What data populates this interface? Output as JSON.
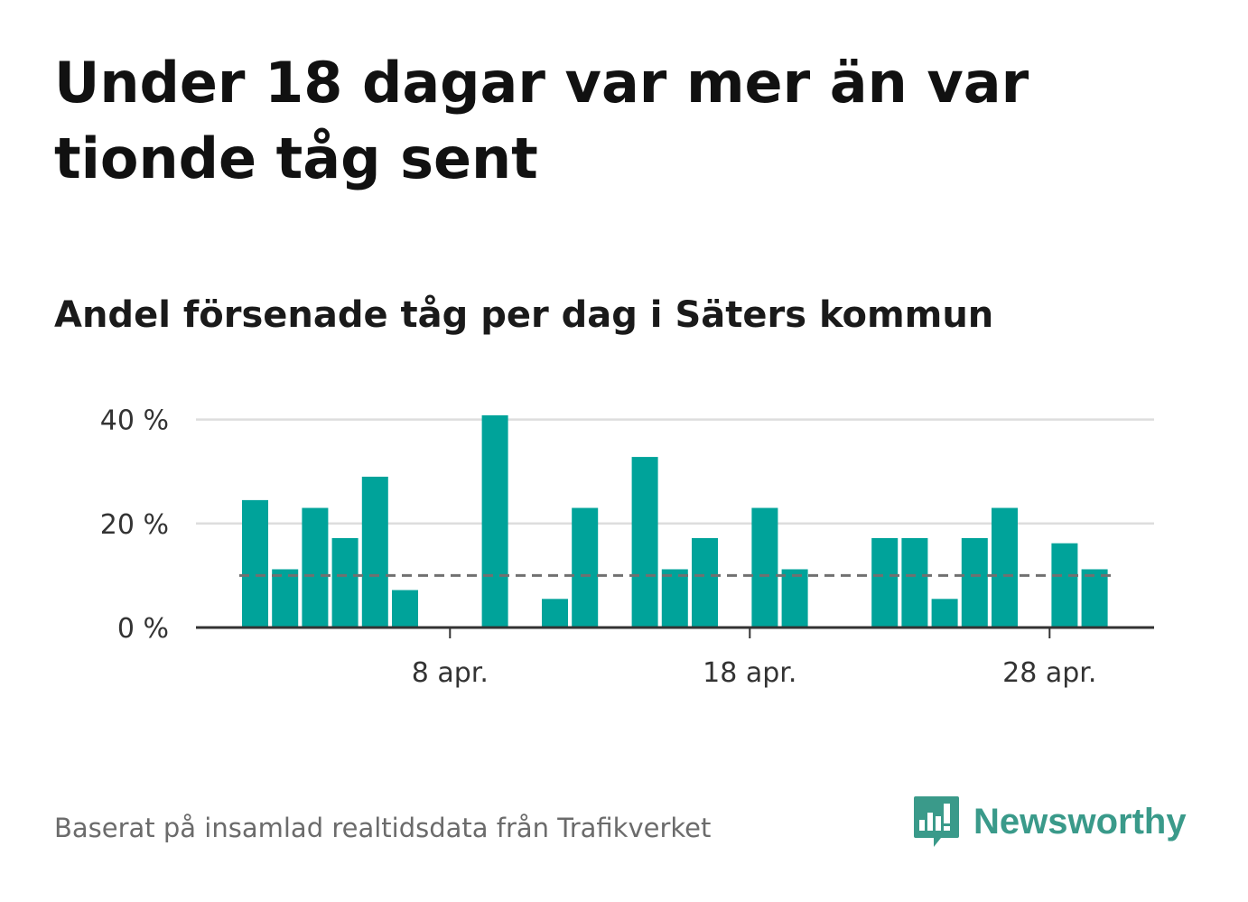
{
  "headline": "Under 18 dagar var mer än var tionde tåg sent",
  "subtitle": "Andel försenade tåg per dag i Säters kommun",
  "source": "Baserat på insamlad realtidsdata från Trafikverket",
  "brand": {
    "name": "Newsworthy",
    "icon": "newsworthy-logo-icon",
    "color": "#3a9a8a"
  },
  "chart_data": {
    "type": "bar",
    "x": [
      "1 apr.",
      "2 apr.",
      "3 apr.",
      "4 apr.",
      "5 apr.",
      "6 apr.",
      "7 apr.",
      "8 apr.",
      "9 apr.",
      "10 apr.",
      "11 apr.",
      "12 apr.",
      "13 apr.",
      "14 apr.",
      "15 apr.",
      "16 apr.",
      "17 apr.",
      "18 apr.",
      "19 apr.",
      "20 apr.",
      "21 apr.",
      "22 apr.",
      "23 apr.",
      "24 apr.",
      "25 apr.",
      "26 apr.",
      "27 apr.",
      "28 apr.",
      "29 apr."
    ],
    "values": [
      24.5,
      11.2,
      23.0,
      17.2,
      29.0,
      7.2,
      0,
      0,
      40.8,
      0,
      5.5,
      23.0,
      0,
      32.8,
      11.2,
      17.2,
      0,
      23.0,
      11.2,
      0,
      0,
      17.2,
      17.2,
      5.5,
      17.2,
      23.0,
      0,
      16.2,
      11.2
    ],
    "x_ticks": [
      "8 apr.",
      "18 apr.",
      "28 apr."
    ],
    "y_ticks": [
      0,
      20,
      40
    ],
    "y_tick_labels": [
      "0 %",
      "20 %",
      "40 %"
    ],
    "ylim": [
      0,
      40.8
    ],
    "reference_line": 10,
    "grid": true,
    "bar_color": "#00a39a"
  }
}
